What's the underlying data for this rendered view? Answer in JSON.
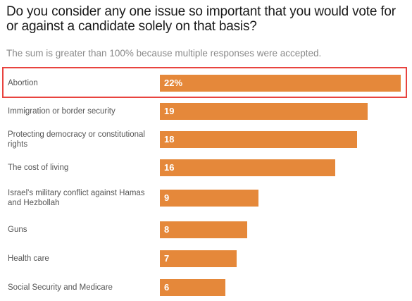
{
  "title": "Do you consider any one issue so important that you would vote for or against a candidate solely on that basis?",
  "subtitle": "The sum is greater than 100% because multiple responses were accepted.",
  "colors": {
    "bar": "#e5883a",
    "highlight": "#e8433f",
    "value_text": "#ffffff"
  },
  "chart_data": {
    "type": "bar",
    "orientation": "horizontal",
    "title": "Do you consider any one issue so important that you would vote for or against a candidate solely on that basis?",
    "subtitle": "The sum is greater than 100% because multiple responses were accepted.",
    "categories": [
      "Abortion",
      "Immigration or border security",
      "Protecting democracy or constitutional rights",
      "The cost of living",
      "Israel's military conflict against Hamas and Hezbollah",
      "Guns",
      "Health care",
      "Social Security and Medicare"
    ],
    "values": [
      22,
      19,
      18,
      16,
      9,
      8,
      7,
      6
    ],
    "value_labels": [
      "22%",
      "19",
      "18",
      "16",
      "9",
      "8",
      "7",
      "6"
    ],
    "xlim": [
      0,
      22
    ],
    "grid": false,
    "highlighted_category": "Abortion"
  }
}
